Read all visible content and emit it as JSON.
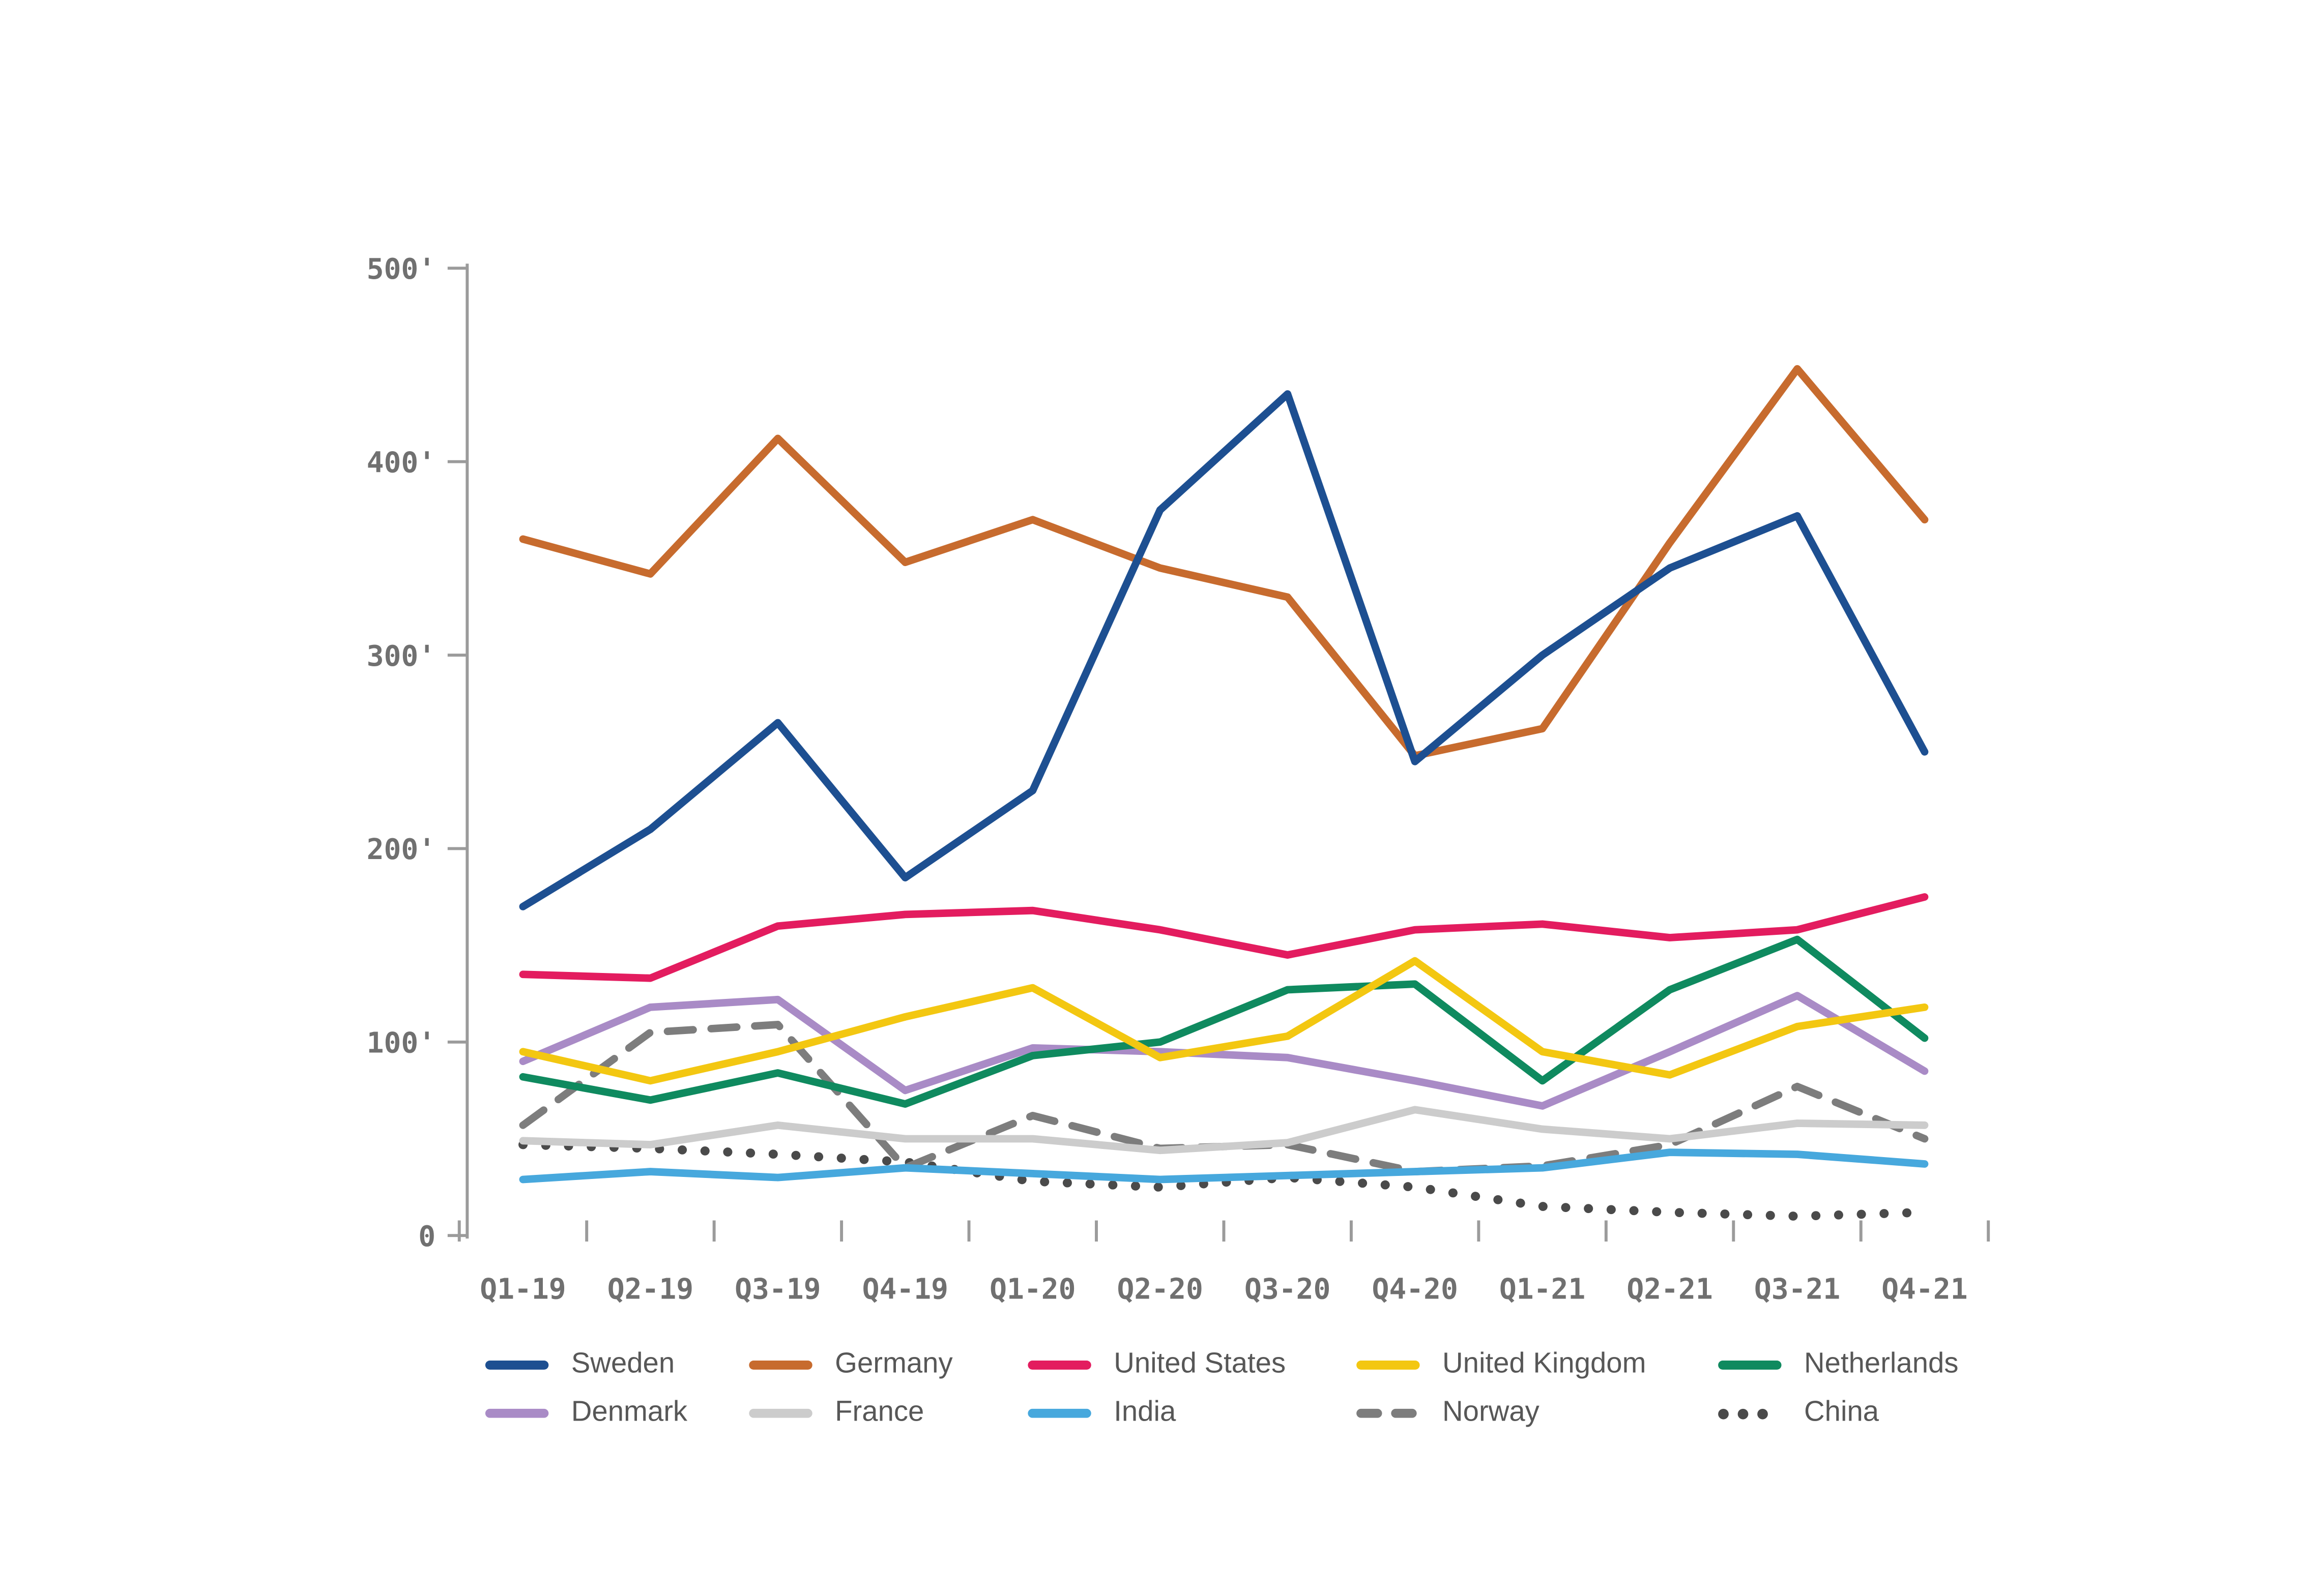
{
  "chart_data": {
    "type": "line",
    "title": "",
    "categories": [
      "Q1-19",
      "Q2-19",
      "Q3-19",
      "Q4-19",
      "Q1-20",
      "Q2-20",
      "Q3-20",
      "Q4-20",
      "Q1-21",
      "Q2-21",
      "Q3-21",
      "Q4-21"
    ],
    "series": [
      {
        "name": "Sweden",
        "color": "#1d4f91",
        "style": "solid",
        "values": [
          170,
          210,
          265,
          185,
          230,
          375,
          435,
          245,
          300,
          345,
          372,
          250
        ]
      },
      {
        "name": "Germany",
        "color": "#c76b2e",
        "style": "solid",
        "values": [
          360,
          342,
          412,
          348,
          370,
          345,
          330,
          248,
          262,
          358,
          448,
          370
        ]
      },
      {
        "name": "United States",
        "color": "#e31c5f",
        "style": "solid",
        "values": [
          135,
          133,
          160,
          166,
          168,
          158,
          145,
          158,
          161,
          154,
          158,
          175
        ]
      },
      {
        "name": "United Kingdom",
        "color": "#f3c711",
        "style": "solid",
        "values": [
          95,
          80,
          95,
          113,
          128,
          92,
          103,
          142,
          95,
          83,
          108,
          118
        ]
      },
      {
        "name": "Netherlands",
        "color": "#0f8a5f",
        "style": "solid",
        "values": [
          82,
          70,
          84,
          68,
          93,
          100,
          127,
          130,
          80,
          127,
          153,
          102
        ]
      },
      {
        "name": "Denmark",
        "color": "#a98bc6",
        "style": "solid",
        "values": [
          90,
          118,
          122,
          75,
          97,
          95,
          92,
          80,
          67,
          95,
          124,
          85
        ]
      },
      {
        "name": "France",
        "color": "#cccccc",
        "style": "solid",
        "values": [
          49,
          47,
          57,
          50,
          50,
          44,
          48,
          65,
          55,
          50,
          58,
          57
        ]
      },
      {
        "name": "India",
        "color": "#47a8dd",
        "style": "solid",
        "values": [
          29,
          33,
          30,
          35,
          32,
          29,
          31,
          33,
          35,
          43,
          42,
          37
        ]
      },
      {
        "name": "Norway",
        "color": "#7d7d7d",
        "style": "dashed",
        "values": [
          57,
          105,
          109,
          35,
          62,
          45,
          47,
          33,
          36,
          47,
          77,
          50
        ]
      },
      {
        "name": "China",
        "color": "#4a4a4a",
        "style": "dotted",
        "values": [
          47,
          45,
          42,
          38,
          28,
          25,
          30,
          25,
          15,
          12,
          10,
          12
        ]
      }
    ],
    "ylim": [
      0,
      500
    ],
    "yticks": [
      {
        "value": 0,
        "label": "0"
      },
      {
        "value": 100,
        "label": "100'"
      },
      {
        "value": 200,
        "label": "200'"
      },
      {
        "value": 300,
        "label": "300'"
      },
      {
        "value": 400,
        "label": "400'"
      },
      {
        "value": 500,
        "label": "500'"
      }
    ],
    "xlabel": "",
    "ylabel": "",
    "grid": false,
    "legend_position": "bottom",
    "legend_rows": [
      [
        "Sweden",
        "Germany",
        "United States",
        "United Kingdom",
        "Netherlands"
      ],
      [
        "Denmark",
        "France",
        "India",
        "Norway",
        "China"
      ]
    ]
  },
  "theme": {
    "background": "#ffffff",
    "axis_color": "#9b9b9b",
    "tick_label_color": "#707070",
    "legend_label_color": "#575757"
  }
}
